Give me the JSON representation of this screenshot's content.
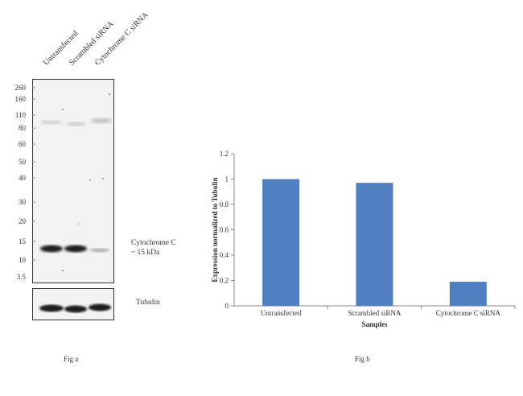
{
  "fig_a": {
    "lanes": [
      "Untransfected",
      "Scrambled siRNA",
      "Cytochrome C siRNA"
    ],
    "mw_markers": [
      "260",
      "160",
      "110",
      "80",
      "60",
      "50",
      "40",
      "30",
      "20",
      "15",
      "10",
      "3.5"
    ],
    "band_label_line1": "Cytochrome C",
    "band_label_line2": "~ 15 kDa",
    "loading_control_label": "Tubulin",
    "caption": "Fig a"
  },
  "fig_b": {
    "caption": "Fig b"
  },
  "chart_data": {
    "type": "bar",
    "categories": [
      "Untransfected",
      "Scrambled siRNA",
      "Cytochrome C siRNA"
    ],
    "values": [
      1.0,
      0.97,
      0.19
    ],
    "xlabel": "Samples",
    "ylabel": "Expression  normalized to Tubulin",
    "ylim": [
      0,
      1.2
    ],
    "yticks": [
      "0",
      "0.2",
      "0.4",
      "0.6",
      "0.8",
      "1",
      "1.2"
    ],
    "bar_color": "#4f7fc0",
    "grid": false,
    "legend": "none"
  }
}
